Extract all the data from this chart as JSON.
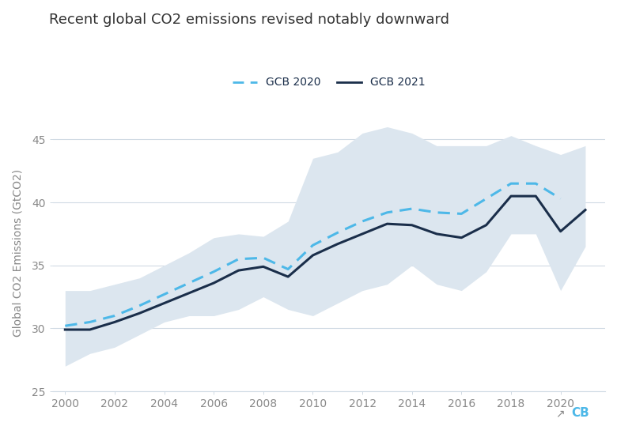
{
  "title": "Recent global CO2 emissions revised notably downward",
  "ylabel": "Global CO2 Emissions (GtCO2)",
  "background_color": "#ffffff",
  "plot_bg_color": "#ffffff",
  "title_color": "#333333",
  "years_2021": [
    2000,
    2001,
    2002,
    2003,
    2004,
    2005,
    2006,
    2007,
    2008,
    2009,
    2010,
    2011,
    2012,
    2013,
    2014,
    2015,
    2016,
    2017,
    2018,
    2019,
    2020,
    2021
  ],
  "gcb2021": [
    29.9,
    29.9,
    30.5,
    31.2,
    32.0,
    32.8,
    33.6,
    34.6,
    34.9,
    34.1,
    35.8,
    36.7,
    37.5,
    38.3,
    38.2,
    37.5,
    37.2,
    38.2,
    40.5,
    40.5,
    37.7,
    39.4
  ],
  "years_2020": [
    2000,
    2001,
    2002,
    2003,
    2004,
    2005,
    2006,
    2007,
    2008,
    2009,
    2010,
    2011,
    2012,
    2013,
    2014,
    2015,
    2016,
    2017,
    2018,
    2019,
    2020
  ],
  "gcb2020": [
    30.2,
    30.5,
    31.0,
    31.8,
    32.7,
    33.6,
    34.5,
    35.5,
    35.6,
    34.7,
    36.6,
    37.6,
    38.5,
    39.2,
    39.5,
    39.2,
    39.1,
    40.3,
    41.5,
    41.5,
    40.3
  ],
  "shade_upper": [
    33.0,
    33.0,
    33.5,
    34.0,
    35.0,
    36.0,
    37.2,
    37.5,
    37.3,
    38.5,
    43.5,
    44.0,
    45.5,
    46.0,
    45.5,
    44.5,
    44.5,
    44.5,
    45.3,
    44.5,
    43.8,
    44.5
  ],
  "shade_lower": [
    27.0,
    28.0,
    28.5,
    29.5,
    30.5,
    31.0,
    31.0,
    31.5,
    32.5,
    31.5,
    31.0,
    32.0,
    33.0,
    33.5,
    35.0,
    33.5,
    33.0,
    34.5,
    37.5,
    37.5,
    33.0,
    36.5
  ],
  "gcb2020_color": "#4db8e8",
  "gcb2021_color": "#1a2e4a",
  "shade_color": "#dce6ef",
  "ylim": [
    25,
    47
  ],
  "yticks": [
    25,
    30,
    35,
    40,
    45
  ],
  "xlim": [
    1999.5,
    2021.8
  ],
  "xticks": [
    2000,
    2002,
    2004,
    2006,
    2008,
    2010,
    2012,
    2014,
    2016,
    2018,
    2020
  ],
  "legend_gcb2020_label": "GCB 2020",
  "legend_gcb2021_label": "GCB 2021",
  "grid_color": "#d0dae4",
  "tick_color": "#888888",
  "title_fontsize": 13,
  "ylabel_fontsize": 10,
  "tick_fontsize": 10
}
